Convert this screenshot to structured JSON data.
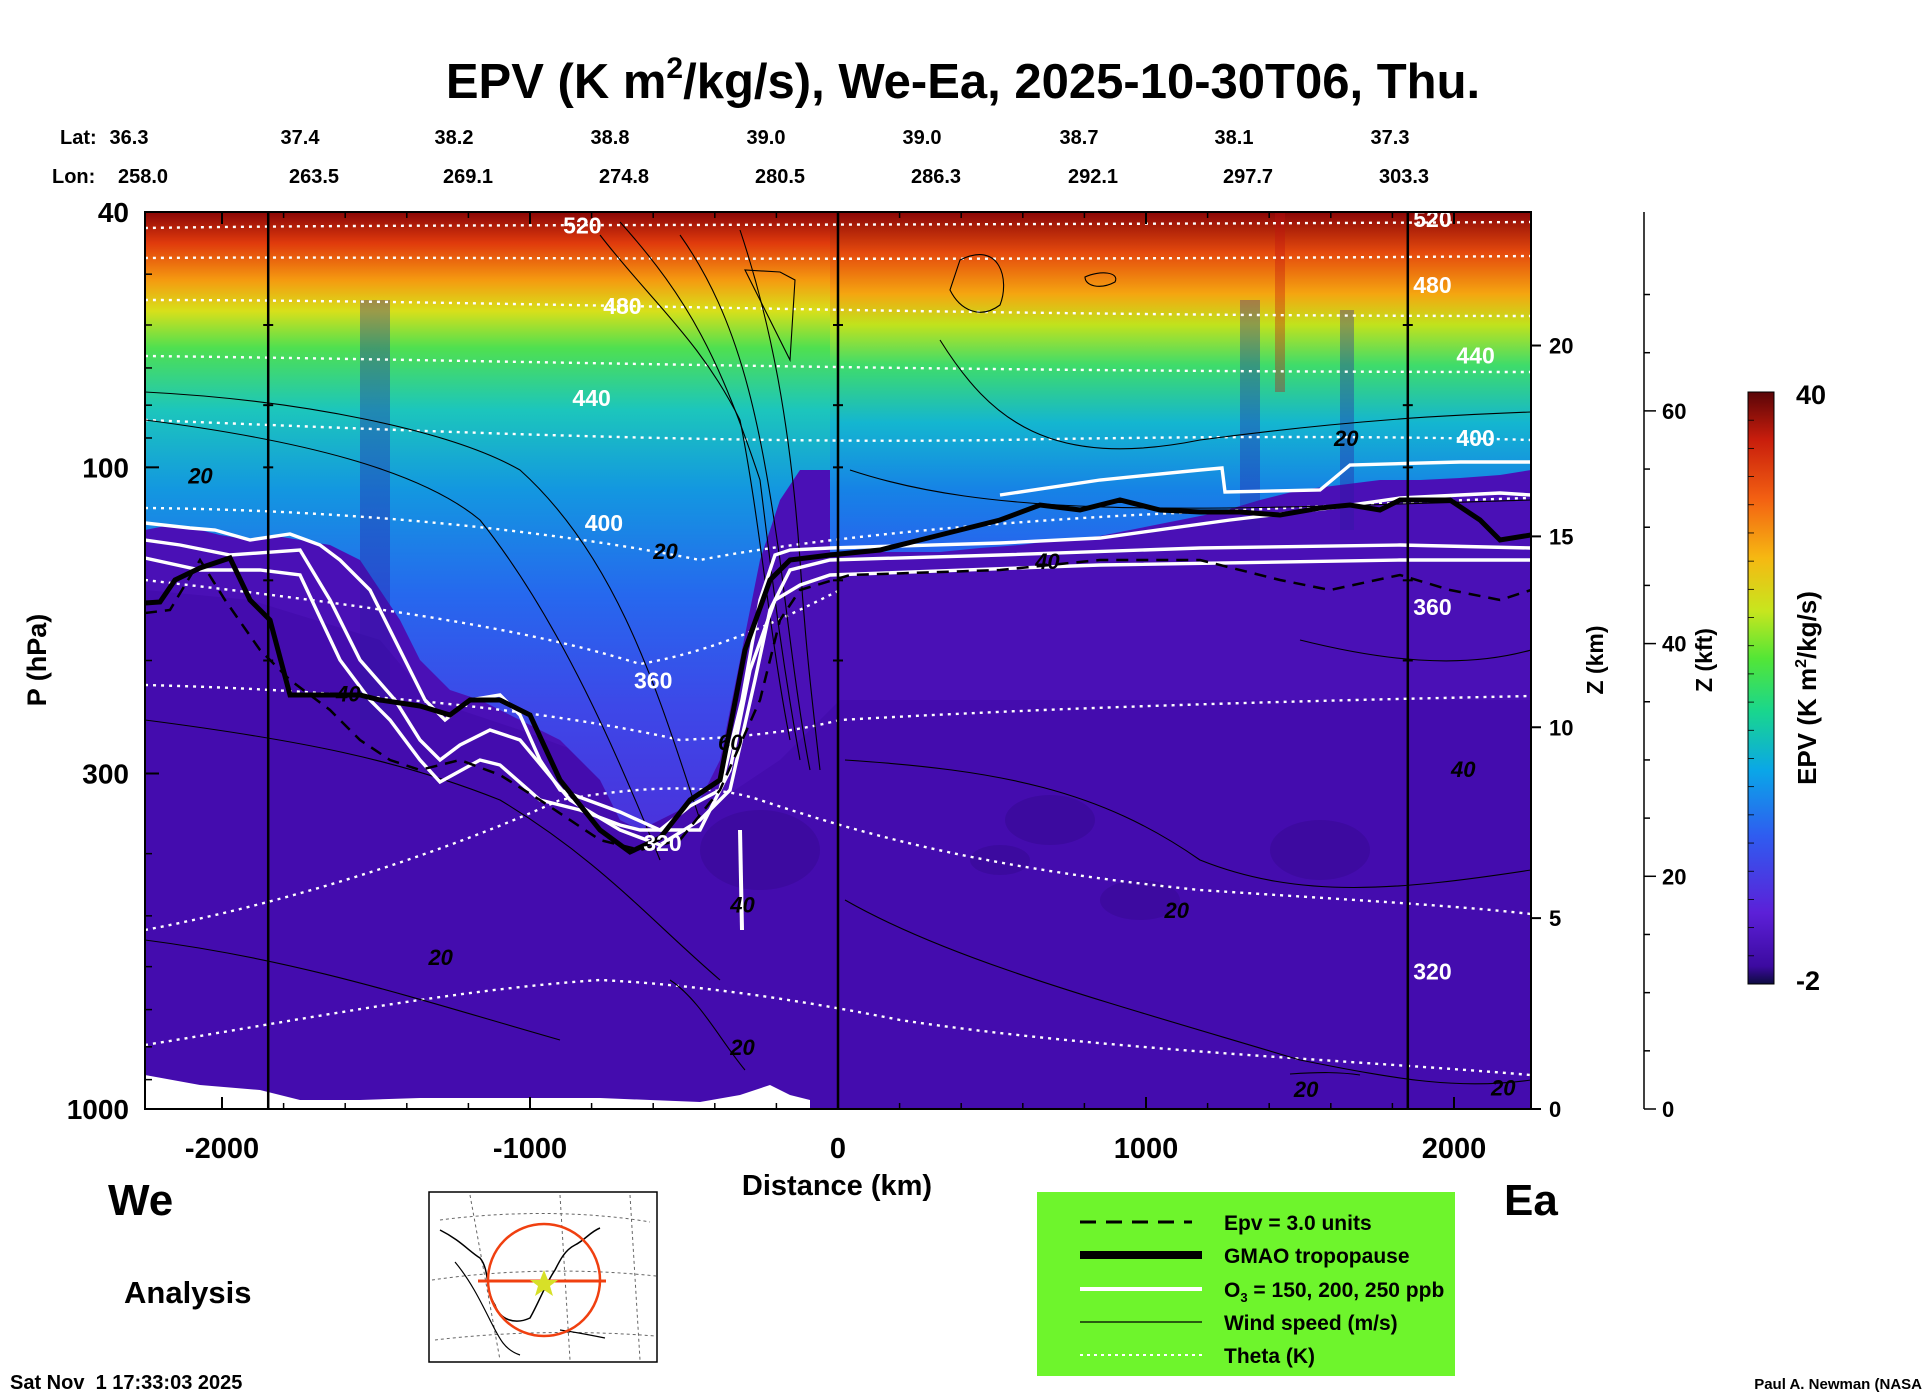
{
  "chart_data": {
    "type": "heatmap",
    "title": "EPV (K m²/kg/s), We-Ea, 2025-10-30T06, Thu.",
    "title_parts": {
      "a": "EPV (K m",
      "sup": "2",
      "b": "/kg/s), We-Ea, 2025-10-30T06, Thu."
    },
    "xlabel": "Distance (km)",
    "ylabel": "P (hPa)",
    "xlim": [
      -2250,
      2250
    ],
    "ylim": [
      1000,
      40
    ],
    "x_ticks": [
      "-2000",
      "-1000",
      "0",
      "1000",
      "2000"
    ],
    "x_tick_values": [
      -2000,
      -1000,
      0,
      1000,
      2000
    ],
    "y_ticks": [
      "40",
      "100",
      "300",
      "1000"
    ],
    "y_tick_values": [
      40,
      100,
      300,
      1000
    ],
    "z_km_label": "Z (km)",
    "z_km_ticks": [
      "20",
      "15",
      "10",
      "5",
      "0"
    ],
    "z_km_values": [
      20,
      15,
      10,
      5,
      0
    ],
    "z_kft_label": "Z (kft)",
    "z_kft_ticks": [
      "60",
      "40",
      "20",
      "0"
    ],
    "z_kft_values": [
      60,
      40,
      20,
      0
    ],
    "lat_label": "Lat:",
    "lon_label": "Lon:",
    "lat": [
      "36.3",
      "37.4",
      "38.2",
      "38.8",
      "39.0",
      "39.0",
      "38.7",
      "38.1",
      "37.3"
    ],
    "lon": [
      "258.0",
      "263.5",
      "269.1",
      "274.8",
      "280.5",
      "286.3",
      "292.1",
      "297.7",
      "303.3"
    ],
    "colorbar": {
      "label": "EPV (K m²/kg/s)",
      "label_parts": {
        "a": "EPV (K m",
        "sup": "2",
        "b": "/kg/s)"
      },
      "max_label": "40",
      "min_label": "-2",
      "min": -2,
      "max": 40
    },
    "theta_labels": [
      {
        "text": "520",
        "x": -830,
        "p": 42
      },
      {
        "text": "480",
        "x": -700,
        "p": 56
      },
      {
        "text": "440",
        "x": -800,
        "p": 78
      },
      {
        "text": "400",
        "x": -760,
        "p": 122
      },
      {
        "text": "360",
        "x": -600,
        "p": 215
      },
      {
        "text": "320",
        "x": -570,
        "p": 385
      },
      {
        "text": "520",
        "x": 1930,
        "p": 41
      },
      {
        "text": "480",
        "x": 1930,
        "p": 52
      },
      {
        "text": "440",
        "x": 2070,
        "p": 67
      },
      {
        "text": "400",
        "x": 2070,
        "p": 90
      },
      {
        "text": "360",
        "x": 1930,
        "p": 165
      },
      {
        "text": "320",
        "x": 1930,
        "p": 610
      }
    ],
    "wind_labels": [
      {
        "text": "20",
        "x": -2070,
        "p": 103
      },
      {
        "text": "20",
        "x": -560,
        "p": 135
      },
      {
        "text": "60",
        "x": -350,
        "p": 268
      },
      {
        "text": "40",
        "x": 680,
        "p": 140
      },
      {
        "text": "20",
        "x": 1650,
        "p": 90
      },
      {
        "text": "40",
        "x": 2030,
        "p": 295
      },
      {
        "text": "40",
        "x": -1590,
        "p": 225
      },
      {
        "text": "40",
        "x": -310,
        "p": 480
      },
      {
        "text": "20",
        "x": 1100,
        "p": 490
      },
      {
        "text": "20",
        "x": -1290,
        "p": 580
      },
      {
        "text": "20",
        "x": -310,
        "p": 800
      },
      {
        "text": "20",
        "x": 1520,
        "p": 930
      },
      {
        "text": "20",
        "x": 2160,
        "p": 925
      }
    ],
    "section_lines_km": [
      -1850,
      0,
      1850
    ],
    "direction_left": "We",
    "direction_right": "Ea",
    "legend": [
      {
        "label": "Epv = 3.0 units",
        "style": "dashed-black"
      },
      {
        "label": "GMAO tropopause",
        "style": "thick-black"
      },
      {
        "label": "O₃ = 150, 200, 250 ppb",
        "label_parts": {
          "a": "O",
          "sub": "3",
          "b": " = 150, 200, 250 ppb"
        },
        "style": "white"
      },
      {
        "label": "Wind speed (m/s)",
        "style": "thin-black"
      },
      {
        "label": "Theta (K)",
        "style": "dotted-white"
      }
    ]
  },
  "footer": {
    "analysis": "Analysis",
    "timestamp": "Sat Nov  1 17:33:03 2025",
    "credit": "Paul A. Newman (NASA"
  },
  "colors": {
    "background_purple": "#4a0fb4",
    "legend_green": "#6ef52c"
  }
}
